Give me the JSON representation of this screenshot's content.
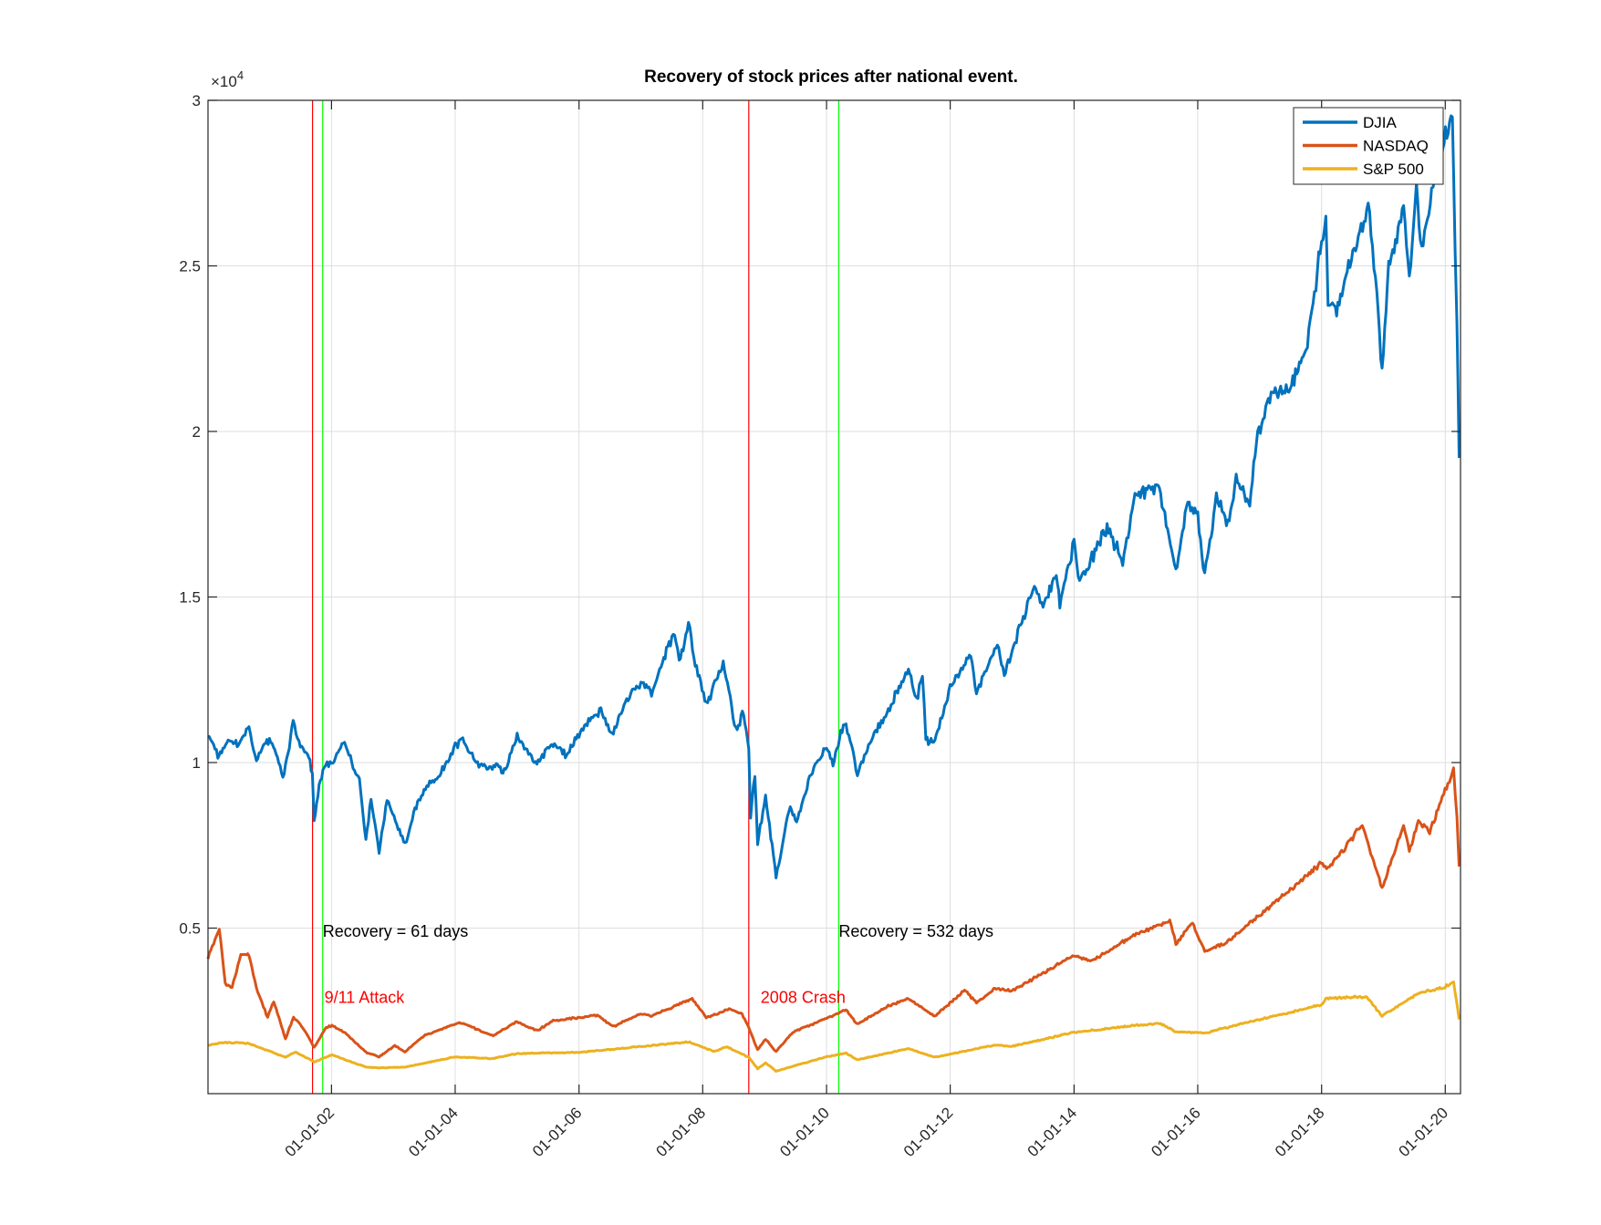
{
  "chart_data": {
    "type": "line",
    "title": "Recovery of stock prices after national event.",
    "xlabel": "",
    "ylabel": "",
    "y_exponent_label": "×10",
    "y_exponent_power": "4",
    "ylim": [
      0,
      30000
    ],
    "xlim": [
      "2000-01-03",
      "2020-03-31"
    ],
    "grid": true,
    "legend_position": "top-right",
    "x_ticks": [
      {
        "date": "2002-01-01",
        "label": "01-01-02"
      },
      {
        "date": "2004-01-01",
        "label": "01-01-04"
      },
      {
        "date": "2006-01-01",
        "label": "01-01-06"
      },
      {
        "date": "2008-01-01",
        "label": "01-01-08"
      },
      {
        "date": "2010-01-01",
        "label": "01-01-10"
      },
      {
        "date": "2012-01-01",
        "label": "01-01-12"
      },
      {
        "date": "2014-01-01",
        "label": "01-01-14"
      },
      {
        "date": "2016-01-01",
        "label": "01-01-16"
      },
      {
        "date": "2018-01-01",
        "label": "01-01-18"
      },
      {
        "date": "2020-01-01",
        "label": "01-01-20"
      }
    ],
    "y_ticks": [
      {
        "value": 5000,
        "label": "0.5"
      },
      {
        "value": 10000,
        "label": "1"
      },
      {
        "value": 15000,
        "label": "1.5"
      },
      {
        "value": 20000,
        "label": "2"
      },
      {
        "value": 25000,
        "label": "2.5"
      },
      {
        "value": 30000,
        "label": "3"
      }
    ],
    "series": [
      {
        "name": "DJIA",
        "color": "#0072BD",
        "points": [
          [
            "2000-01-03",
            10900
          ],
          [
            "2000-03-01",
            10200
          ],
          [
            "2000-05-01",
            10700
          ],
          [
            "2000-07-01",
            10500
          ],
          [
            "2000-09-01",
            11100
          ],
          [
            "2000-10-15",
            10000
          ],
          [
            "2000-12-01",
            10600
          ],
          [
            "2001-01-15",
            10700
          ],
          [
            "2001-03-20",
            9500
          ],
          [
            "2001-05-20",
            11200
          ],
          [
            "2001-07-01",
            10500
          ],
          [
            "2001-08-20",
            10200
          ],
          [
            "2001-09-10",
            9600
          ],
          [
            "2001-09-21",
            8300
          ],
          [
            "2001-10-20",
            9300
          ],
          [
            "2001-11-19",
            9900
          ],
          [
            "2002-01-01",
            10000
          ],
          [
            "2002-03-19",
            10600
          ],
          [
            "2002-05-01",
            10000
          ],
          [
            "2002-06-15",
            9400
          ],
          [
            "2002-07-23",
            7700
          ],
          [
            "2002-08-22",
            8900
          ],
          [
            "2002-10-09",
            7300
          ],
          [
            "2002-11-25",
            8900
          ],
          [
            "2003-03-11",
            7500
          ],
          [
            "2003-05-01",
            8500
          ],
          [
            "2003-07-01",
            9200
          ],
          [
            "2003-10-01",
            9600
          ],
          [
            "2004-01-01",
            10500
          ],
          [
            "2004-02-15",
            10700
          ],
          [
            "2004-05-20",
            9900
          ],
          [
            "2004-08-15",
            9900
          ],
          [
            "2004-10-25",
            9750
          ],
          [
            "2005-01-01",
            10800
          ],
          [
            "2005-04-20",
            10000
          ],
          [
            "2005-08-01",
            10600
          ],
          [
            "2005-10-20",
            10200
          ],
          [
            "2006-01-01",
            10900
          ],
          [
            "2006-05-10",
            11600
          ],
          [
            "2006-07-15",
            10800
          ],
          [
            "2006-10-01",
            11800
          ],
          [
            "2007-01-01",
            12450
          ],
          [
            "2007-03-05",
            12100
          ],
          [
            "2007-07-19",
            14000
          ],
          [
            "2007-08-15",
            13000
          ],
          [
            "2007-10-09",
            14150
          ],
          [
            "2007-11-26",
            12800
          ],
          [
            "2008-01-22",
            11700
          ],
          [
            "2008-05-01",
            13000
          ],
          [
            "2008-07-15",
            11000
          ],
          [
            "2008-08-30",
            11500
          ],
          [
            "2008-09-29",
            10400
          ],
          [
            "2008-10-10",
            8400
          ],
          [
            "2008-11-04",
            9600
          ],
          [
            "2008-11-20",
            7550
          ],
          [
            "2009-01-06",
            9000
          ],
          [
            "2009-03-09",
            6550
          ],
          [
            "2009-06-01",
            8700
          ],
          [
            "2009-07-08",
            8150
          ],
          [
            "2009-10-01",
            9700
          ],
          [
            "2010-01-01",
            10500
          ],
          [
            "2010-02-08",
            9950
          ],
          [
            "2010-03-26",
            10900
          ],
          [
            "2010-04-26",
            11200
          ],
          [
            "2010-07-02",
            9700
          ],
          [
            "2010-10-01",
            10800
          ],
          [
            "2011-01-01",
            11600
          ],
          [
            "2011-04-29",
            12800
          ],
          [
            "2011-06-15",
            11900
          ],
          [
            "2011-07-21",
            12700
          ],
          [
            "2011-08-10",
            10700
          ],
          [
            "2011-10-03",
            10650
          ],
          [
            "2012-01-01",
            12250
          ],
          [
            "2012-05-01",
            13300
          ],
          [
            "2012-06-04",
            12100
          ],
          [
            "2012-10-05",
            13600
          ],
          [
            "2012-11-15",
            12600
          ],
          [
            "2013-01-01",
            13400
          ],
          [
            "2013-05-20",
            15400
          ],
          [
            "2013-06-24",
            14700
          ],
          [
            "2013-09-18",
            15700
          ],
          [
            "2013-10-09",
            14800
          ],
          [
            "2014-01-01",
            16600
          ],
          [
            "2014-02-03",
            15400
          ],
          [
            "2014-07-15",
            17100
          ],
          [
            "2014-10-15",
            16100
          ],
          [
            "2014-12-26",
            18050
          ],
          [
            "2015-03-01",
            18200
          ],
          [
            "2015-05-19",
            18300
          ],
          [
            "2015-08-25",
            15700
          ],
          [
            "2015-11-03",
            17900
          ],
          [
            "2016-01-01",
            17400
          ],
          [
            "2016-02-11",
            15700
          ],
          [
            "2016-04-20",
            18000
          ],
          [
            "2016-06-27",
            17150
          ],
          [
            "2016-08-15",
            18600
          ],
          [
            "2016-11-03",
            17900
          ],
          [
            "2016-12-20",
            19950
          ],
          [
            "2017-03-01",
            21100
          ],
          [
            "2017-06-30",
            21400
          ],
          [
            "2017-10-01",
            22400
          ],
          [
            "2018-01-26",
            26600
          ],
          [
            "2018-02-08",
            23900
          ],
          [
            "2018-03-23",
            23600
          ],
          [
            "2018-06-01",
            24800
          ],
          [
            "2018-10-03",
            26800
          ],
          [
            "2018-11-23",
            24300
          ],
          [
            "2018-12-24",
            21800
          ],
          [
            "2019-02-01",
            25000
          ],
          [
            "2019-04-30",
            26600
          ],
          [
            "2019-06-03",
            24800
          ],
          [
            "2019-07-15",
            27350
          ],
          [
            "2019-08-15",
            25500
          ],
          [
            "2019-11-15",
            28000
          ],
          [
            "2020-01-02",
            28900
          ],
          [
            "2020-02-12",
            29550
          ],
          [
            "2020-02-28",
            25400
          ],
          [
            "2020-03-10",
            23500
          ],
          [
            "2020-03-23",
            19200
          ]
        ]
      },
      {
        "name": "NASDAQ",
        "color": "#D95319",
        "points": [
          [
            "2000-01-03",
            4100
          ],
          [
            "2000-03-10",
            5000
          ],
          [
            "2000-04-14",
            3300
          ],
          [
            "2000-05-24",
            3200
          ],
          [
            "2000-07-15",
            4200
          ],
          [
            "2000-09-01",
            4200
          ],
          [
            "2000-10-15",
            3200
          ],
          [
            "2000-12-20",
            2300
          ],
          [
            "2001-01-25",
            2800
          ],
          [
            "2001-04-04",
            1650
          ],
          [
            "2001-05-22",
            2300
          ],
          [
            "2001-07-15",
            2000
          ],
          [
            "2001-09-21",
            1400
          ],
          [
            "2001-12-01",
            2000
          ],
          [
            "2002-01-04",
            2060
          ],
          [
            "2002-04-01",
            1800
          ],
          [
            "2002-07-23",
            1250
          ],
          [
            "2002-10-09",
            1110
          ],
          [
            "2003-01-10",
            1450
          ],
          [
            "2003-03-11",
            1270
          ],
          [
            "2003-07-01",
            1750
          ],
          [
            "2003-10-15",
            1950
          ],
          [
            "2004-01-26",
            2150
          ],
          [
            "2004-08-12",
            1750
          ],
          [
            "2004-12-31",
            2180
          ],
          [
            "2005-04-28",
            1900
          ],
          [
            "2005-08-01",
            2200
          ],
          [
            "2006-04-19",
            2370
          ],
          [
            "2006-07-21",
            2020
          ],
          [
            "2006-12-29",
            2420
          ],
          [
            "2007-03-05",
            2350
          ],
          [
            "2007-10-31",
            2860
          ],
          [
            "2008-01-22",
            2290
          ],
          [
            "2008-06-05",
            2550
          ],
          [
            "2008-08-20",
            2400
          ],
          [
            "2008-09-29",
            2000
          ],
          [
            "2008-11-20",
            1320
          ],
          [
            "2009-01-06",
            1650
          ],
          [
            "2009-03-09",
            1270
          ],
          [
            "2009-06-15",
            1850
          ],
          [
            "2009-12-31",
            2270
          ],
          [
            "2010-04-26",
            2530
          ],
          [
            "2010-07-02",
            2090
          ],
          [
            "2010-12-31",
            2650
          ],
          [
            "2011-04-29",
            2870
          ],
          [
            "2011-10-03",
            2340
          ],
          [
            "2012-03-26",
            3120
          ],
          [
            "2012-06-04",
            2750
          ],
          [
            "2012-09-21",
            3180
          ],
          [
            "2013-01-01",
            3100
          ],
          [
            "2013-12-31",
            4180
          ],
          [
            "2014-04-14",
            3990
          ],
          [
            "2014-12-26",
            4800
          ],
          [
            "2015-07-20",
            5220
          ],
          [
            "2015-08-25",
            4530
          ],
          [
            "2015-12-01",
            5150
          ],
          [
            "2016-02-11",
            4270
          ],
          [
            "2016-06-27",
            4600
          ],
          [
            "2016-12-30",
            5400
          ],
          [
            "2017-06-30",
            6150
          ],
          [
            "2017-12-29",
            6950
          ],
          [
            "2018-02-08",
            6780
          ],
          [
            "2018-08-29",
            8100
          ],
          [
            "2018-12-24",
            6200
          ],
          [
            "2019-04-30",
            8100
          ],
          [
            "2019-06-03",
            7330
          ],
          [
            "2019-07-26",
            8300
          ],
          [
            "2019-10-01",
            7900
          ],
          [
            "2020-02-19",
            9820
          ],
          [
            "2020-03-10",
            8300
          ],
          [
            "2020-03-23",
            6860
          ]
        ]
      },
      {
        "name": "S&P 500",
        "color": "#EDB120",
        "points": [
          [
            "2000-01-03",
            1450
          ],
          [
            "2000-03-24",
            1550
          ],
          [
            "2000-09-01",
            1520
          ],
          [
            "2000-12-20",
            1300
          ],
          [
            "2001-04-04",
            1100
          ],
          [
            "2001-06-01",
            1260
          ],
          [
            "2001-09-21",
            960
          ],
          [
            "2002-01-04",
            1170
          ],
          [
            "2002-07-23",
            800
          ],
          [
            "2002-10-09",
            780
          ],
          [
            "2003-03-11",
            800
          ],
          [
            "2003-12-31",
            1110
          ],
          [
            "2004-08-12",
            1060
          ],
          [
            "2004-12-31",
            1210
          ],
          [
            "2005-12-30",
            1250
          ],
          [
            "2006-12-29",
            1420
          ],
          [
            "2007-10-09",
            1565
          ],
          [
            "2008-03-10",
            1270
          ],
          [
            "2008-05-19",
            1420
          ],
          [
            "2008-09-29",
            1100
          ],
          [
            "2008-11-20",
            750
          ],
          [
            "2009-01-06",
            930
          ],
          [
            "2009-03-09",
            680
          ],
          [
            "2009-12-31",
            1115
          ],
          [
            "2010-04-26",
            1220
          ],
          [
            "2010-07-02",
            1020
          ],
          [
            "2011-04-29",
            1360
          ],
          [
            "2011-10-03",
            1100
          ],
          [
            "2012-09-14",
            1465
          ],
          [
            "2012-12-31",
            1430
          ],
          [
            "2013-12-31",
            1850
          ],
          [
            "2014-12-31",
            2060
          ],
          [
            "2015-05-21",
            2130
          ],
          [
            "2015-08-25",
            1870
          ],
          [
            "2016-02-11",
            1830
          ],
          [
            "2016-12-30",
            2240
          ],
          [
            "2017-12-29",
            2680
          ],
          [
            "2018-01-26",
            2870
          ],
          [
            "2018-09-20",
            2930
          ],
          [
            "2018-12-24",
            2350
          ],
          [
            "2019-07-26",
            3020
          ],
          [
            "2019-12-31",
            3230
          ],
          [
            "2020-02-19",
            3390
          ],
          [
            "2020-03-23",
            2240
          ]
        ]
      }
    ],
    "events": [
      {
        "event_date": "2001-09-11",
        "recovery_date": "2001-11-10",
        "event_label": "9/11 Attack",
        "recovery_label": "Recovery = 61 days",
        "event_label_y": 2900,
        "recovery_label_y": 4900
      },
      {
        "event_date": "2008-09-29",
        "recovery_date": "2010-03-14",
        "event_label": "2008 Crash",
        "recovery_label": "Recovery = 532 days",
        "event_label_y": 2900,
        "recovery_label_y": 4900
      }
    ],
    "colors": {
      "event_line": "#ff0000",
      "recovery_line": "#00ff00",
      "event_text": "#ff0000",
      "recovery_text": "#000000"
    }
  }
}
